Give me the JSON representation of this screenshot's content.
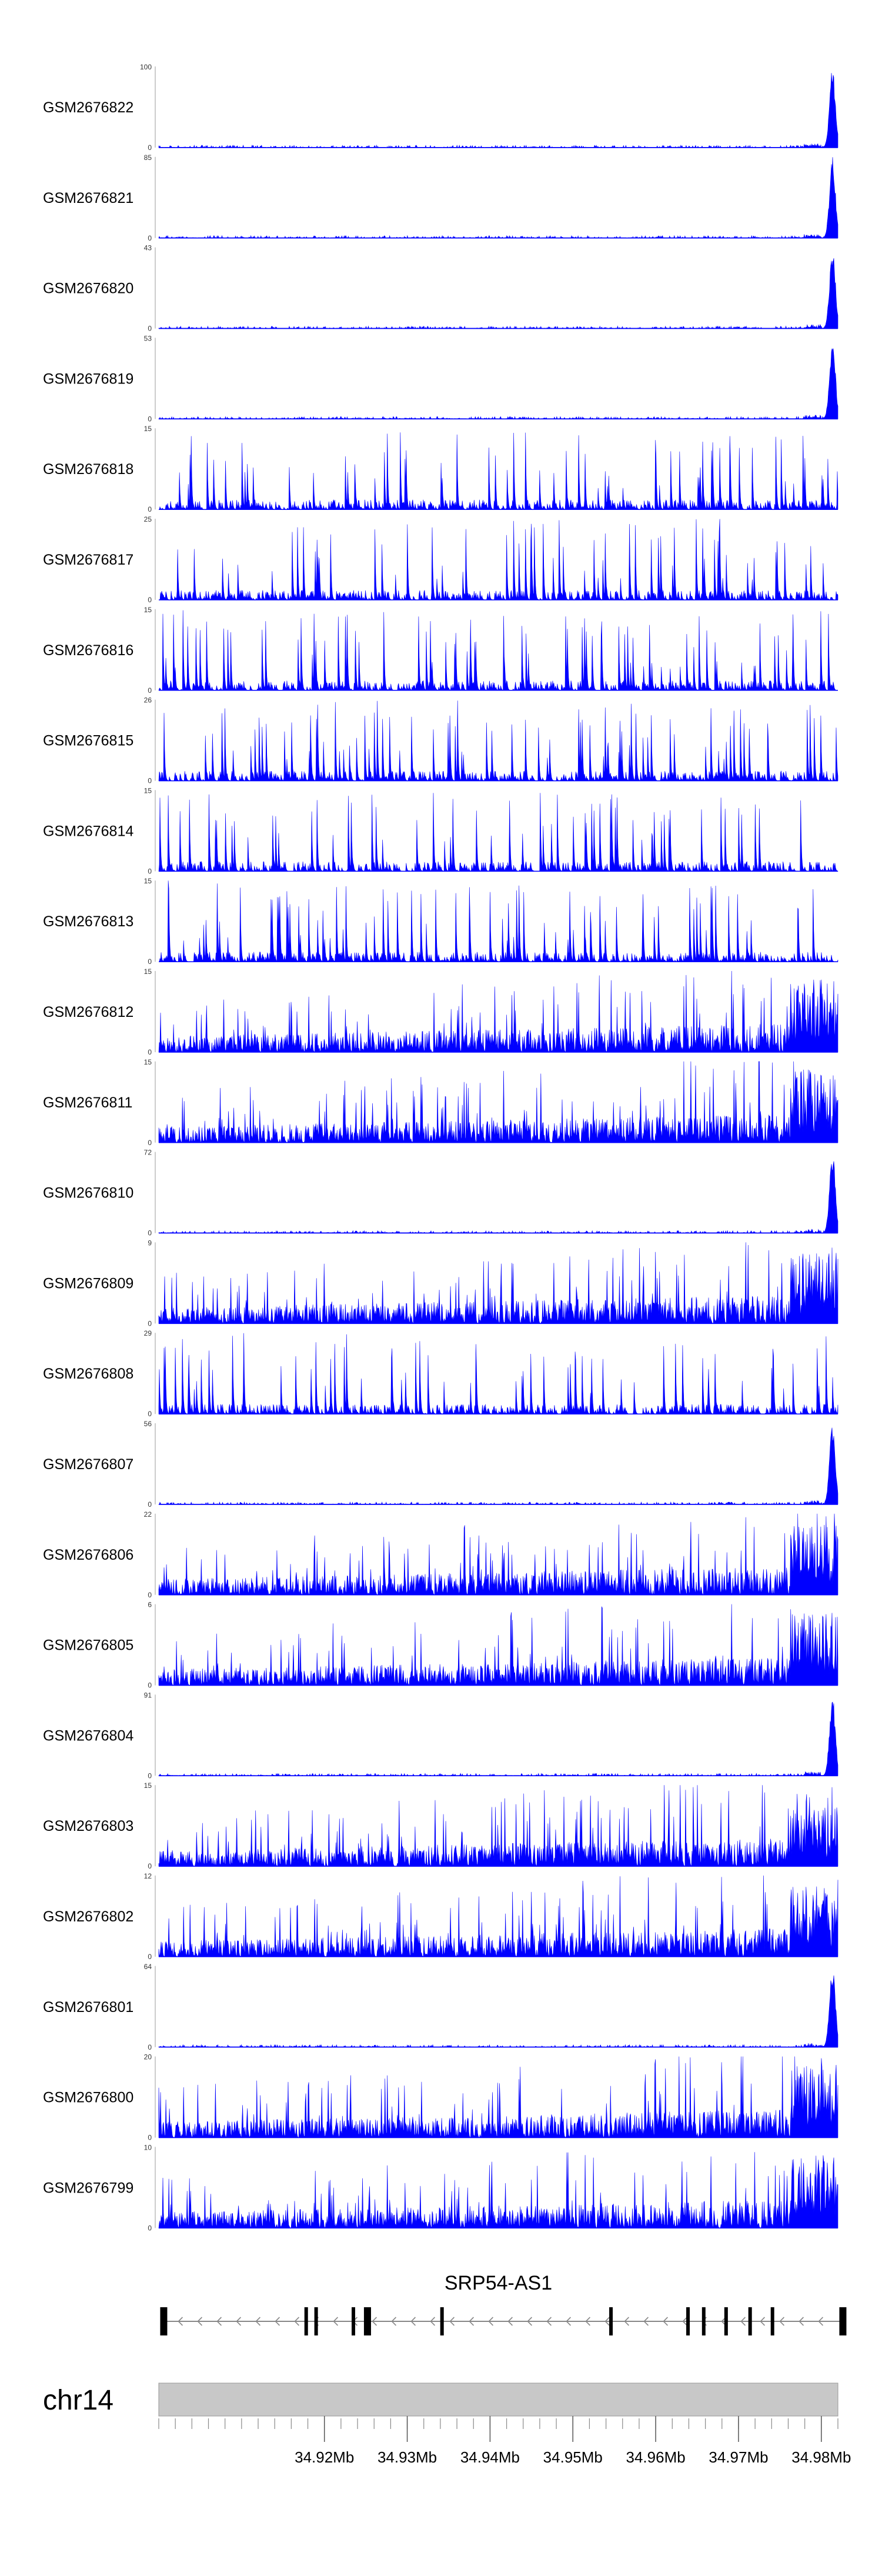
{
  "chart_data": {
    "type": "area",
    "tracks": [
      {
        "label": "GSM2676822",
        "ymax": 100,
        "ymin_label": "0",
        "ymax_label": "100",
        "profile": "tail"
      },
      {
        "label": "GSM2676821",
        "ymax": 85,
        "ymin_label": "0",
        "ymax_label": "85",
        "profile": "tail"
      },
      {
        "label": "GSM2676820",
        "ymax": 43,
        "ymin_label": "0",
        "ymax_label": "43",
        "profile": "tail"
      },
      {
        "label": "GSM2676819",
        "ymax": 53,
        "ymin_label": "0",
        "ymax_label": "53",
        "profile": "tail"
      },
      {
        "label": "GSM2676818",
        "ymax": 15,
        "ymin_label": "0",
        "ymax_label": "15",
        "profile": "sparse"
      },
      {
        "label": "GSM2676817",
        "ymax": 25,
        "ymin_label": "0",
        "ymax_label": "25",
        "profile": "sparse"
      },
      {
        "label": "GSM2676816",
        "ymax": 15,
        "ymin_label": "0",
        "ymax_label": "15",
        "profile": "sparse"
      },
      {
        "label": "GSM2676815",
        "ymax": 26,
        "ymin_label": "0",
        "ymax_label": "26",
        "profile": "sparse"
      },
      {
        "label": "GSM2676814",
        "ymax": 15,
        "ymin_label": "0",
        "ymax_label": "15",
        "profile": "sparse"
      },
      {
        "label": "GSM2676813",
        "ymax": 15,
        "ymin_label": "0",
        "ymax_label": "15",
        "profile": "sparse"
      },
      {
        "label": "GSM2676812",
        "ymax": 15,
        "ymin_label": "0",
        "ymax_label": "15",
        "profile": "dense"
      },
      {
        "label": "GSM2676811",
        "ymax": 15,
        "ymin_label": "0",
        "ymax_label": "15",
        "profile": "dense"
      },
      {
        "label": "GSM2676810",
        "ymax": 72,
        "ymin_label": "0",
        "ymax_label": "72",
        "profile": "tail"
      },
      {
        "label": "GSM2676809",
        "ymax": 9,
        "ymin_label": "0",
        "ymax_label": "9",
        "profile": "dense"
      },
      {
        "label": "GSM2676808",
        "ymax": 29,
        "ymin_label": "0",
        "ymax_label": "29",
        "profile": "sparse"
      },
      {
        "label": "GSM2676807",
        "ymax": 56,
        "ymin_label": "0",
        "ymax_label": "56",
        "profile": "tail"
      },
      {
        "label": "GSM2676806",
        "ymax": 22,
        "ymin_label": "0",
        "ymax_label": "22",
        "profile": "dense"
      },
      {
        "label": "GSM2676805",
        "ymax": 6,
        "ymin_label": "0",
        "ymax_label": "6",
        "profile": "dense"
      },
      {
        "label": "GSM2676804",
        "ymax": 91,
        "ymin_label": "0",
        "ymax_label": "91",
        "profile": "tail"
      },
      {
        "label": "GSM2676803",
        "ymax": 15,
        "ymin_label": "0",
        "ymax_label": "15",
        "profile": "dense"
      },
      {
        "label": "GSM2676802",
        "ymax": 12,
        "ymin_label": "0",
        "ymax_label": "12",
        "profile": "dense"
      },
      {
        "label": "GSM2676801",
        "ymax": 64,
        "ymin_label": "0",
        "ymax_label": "64",
        "profile": "tail"
      },
      {
        "label": "GSM2676800",
        "ymax": 20,
        "ymin_label": "0",
        "ymax_label": "20",
        "profile": "dense"
      },
      {
        "label": "GSM2676799",
        "ymax": 10,
        "ymin_label": "0",
        "ymax_label": "10",
        "profile": "dense"
      }
    ],
    "gene": {
      "name": "SRP54-AS1",
      "strand": "-",
      "exons_mb": [
        34.9006,
        34.9178,
        34.919,
        34.9235,
        34.9252,
        34.9342,
        34.9546,
        34.9639,
        34.9658,
        34.9685,
        34.9714,
        34.9741,
        34.9826
      ]
    },
    "axis": {
      "chromosome": "chr14",
      "xlim_mb": [
        34.9,
        34.982
      ],
      "xticks_mb": [
        34.92,
        34.93,
        34.94,
        34.95,
        34.96,
        34.97,
        34.98
      ],
      "xtick_labels": [
        "34.92Mb",
        "34.93Mb",
        "34.94Mb",
        "34.95Mb",
        "34.96Mb",
        "34.97Mb",
        "34.98Mb"
      ]
    },
    "colors": {
      "signal": "#0000ff",
      "gene": "#000000",
      "ideogram": "#c8c8c8"
    }
  }
}
